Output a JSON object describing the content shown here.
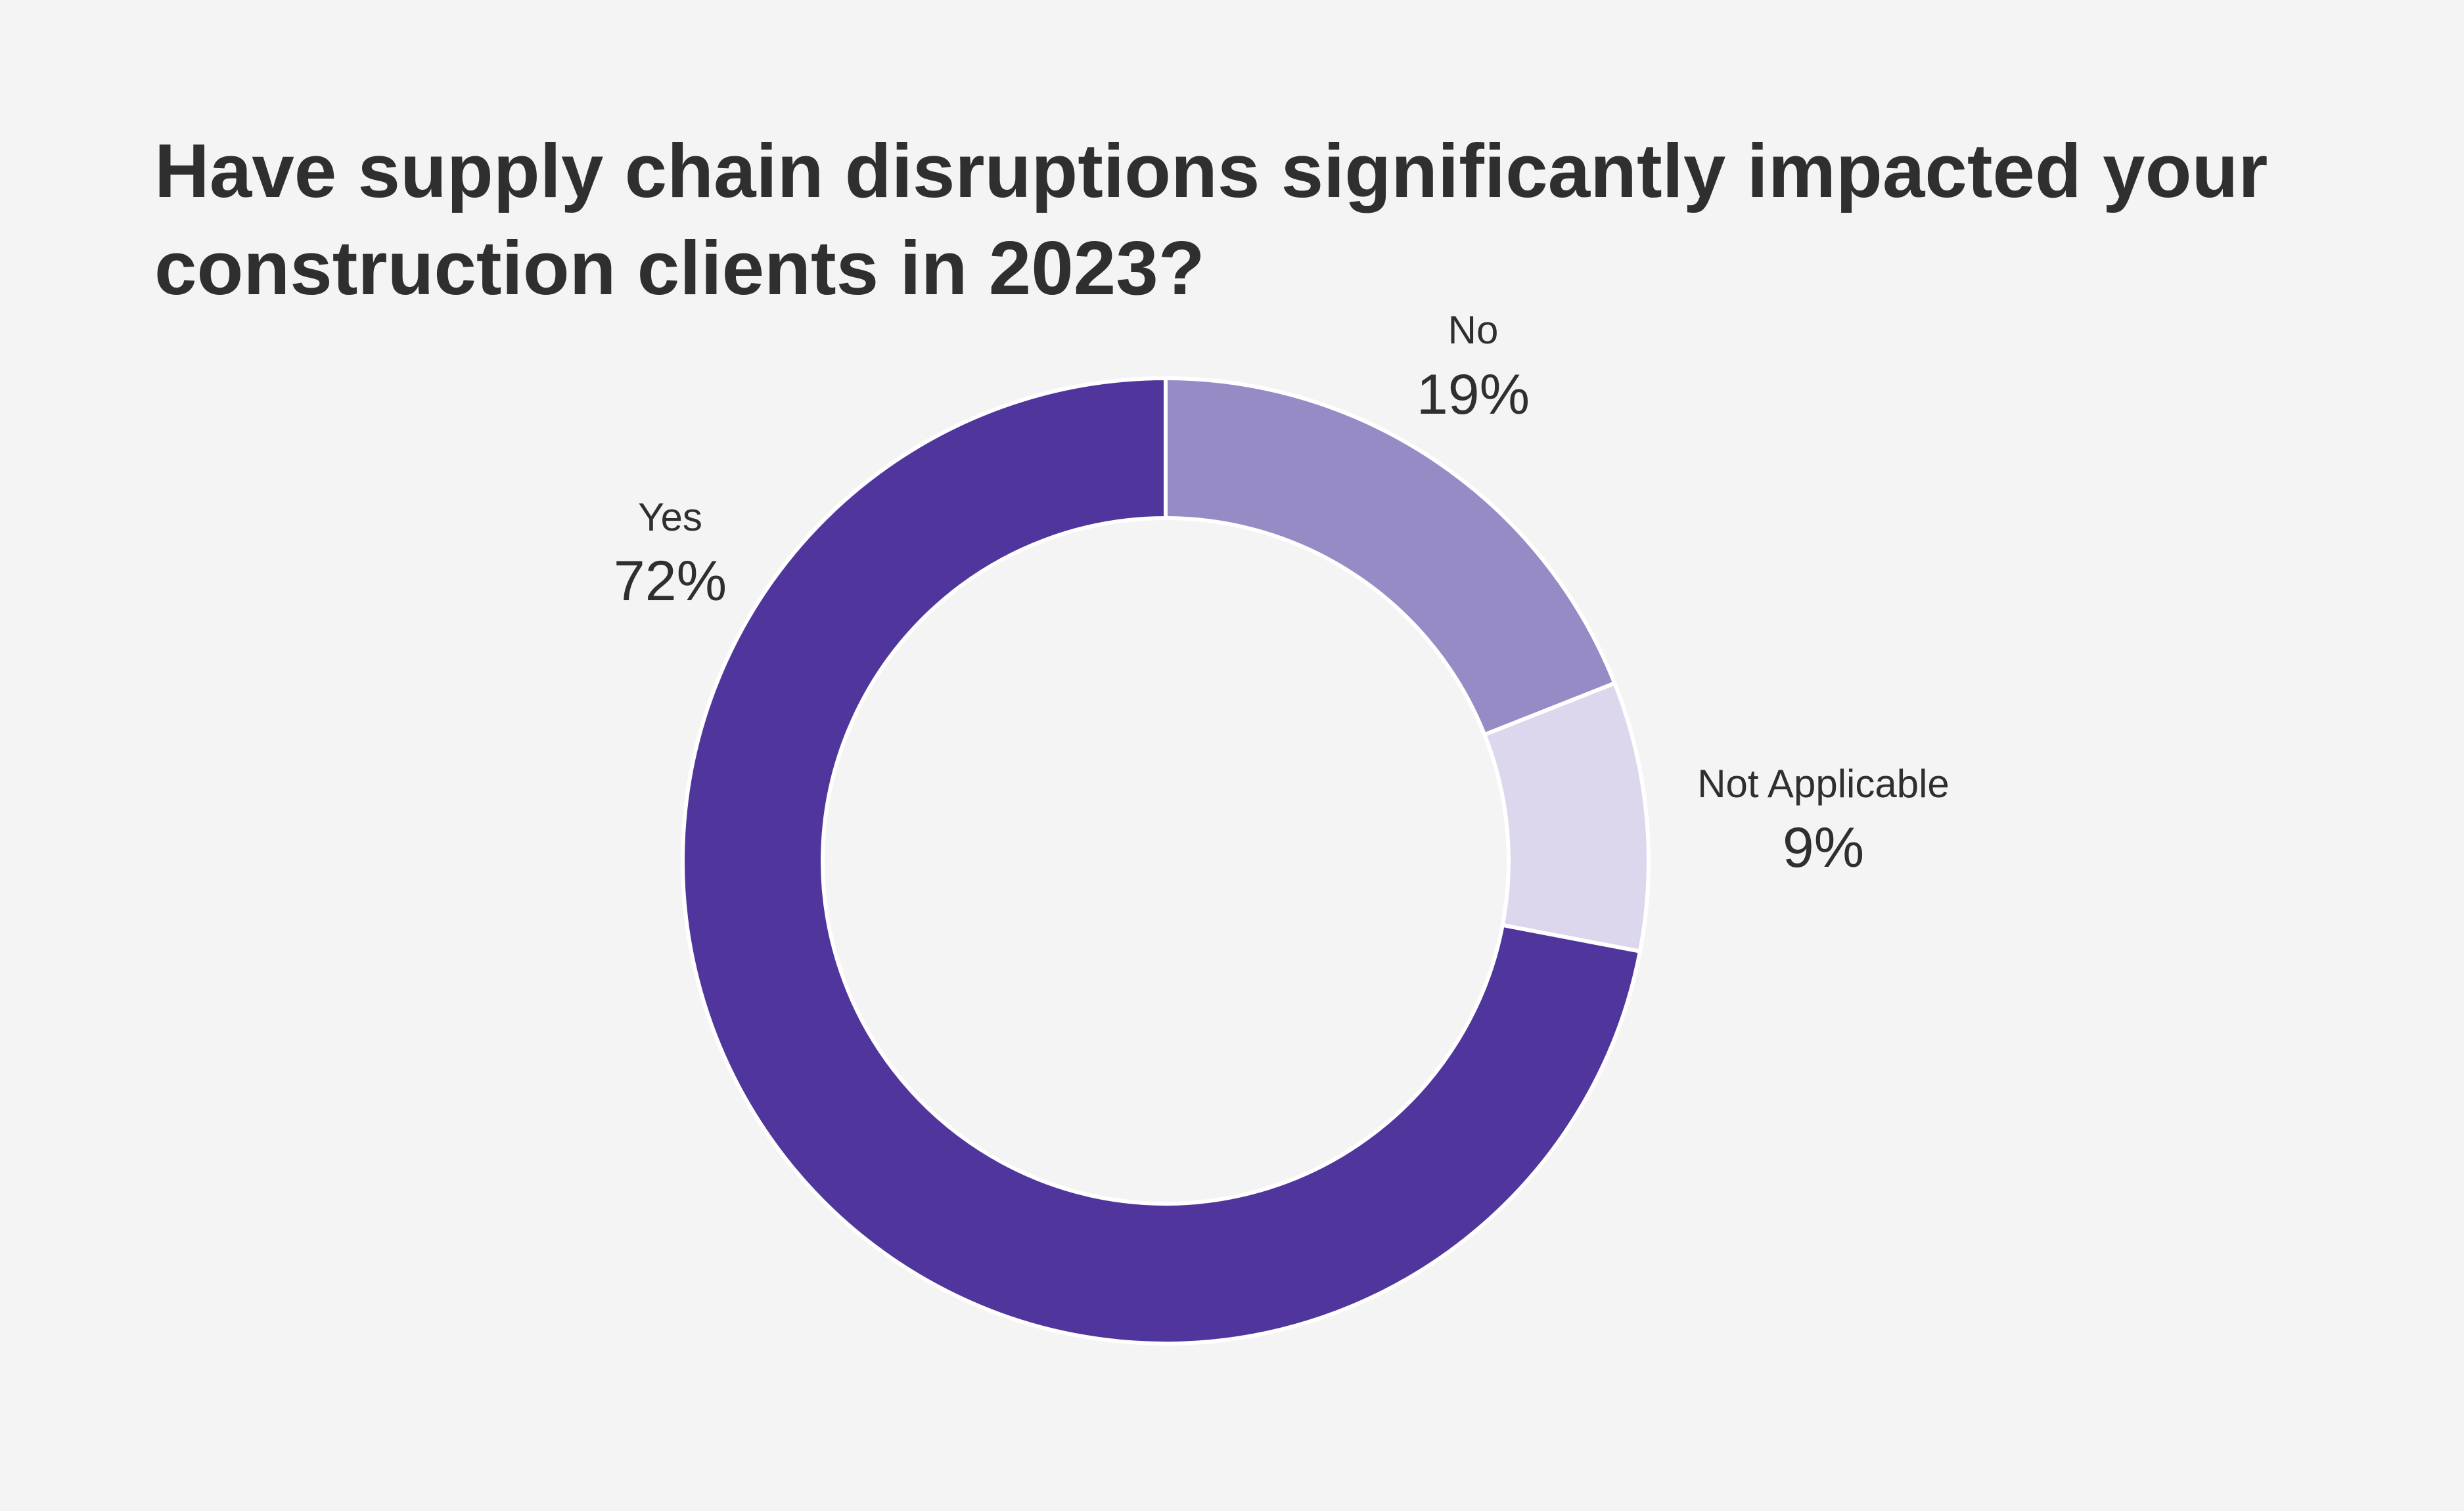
{
  "chart_data": {
    "type": "pie",
    "variant": "donut",
    "title_lines": [
      "Have supply chain disruptions significantly impacted your",
      "construction clients in 2023?"
    ],
    "slices": [
      {
        "label": "No",
        "value": 19,
        "display": "19%",
        "color": "#978bc6"
      },
      {
        "label": "Not Applicable",
        "value": 9,
        "display": "9%",
        "color": "#dcd7ed"
      },
      {
        "label": "Yes",
        "value": 72,
        "display": "72%",
        "color": "#50369c"
      }
    ],
    "start_angle": "12 o'clock",
    "direction": "clockwise",
    "legend": "none",
    "background": "#f4f4f4",
    "separator_color": "#ffffff"
  }
}
